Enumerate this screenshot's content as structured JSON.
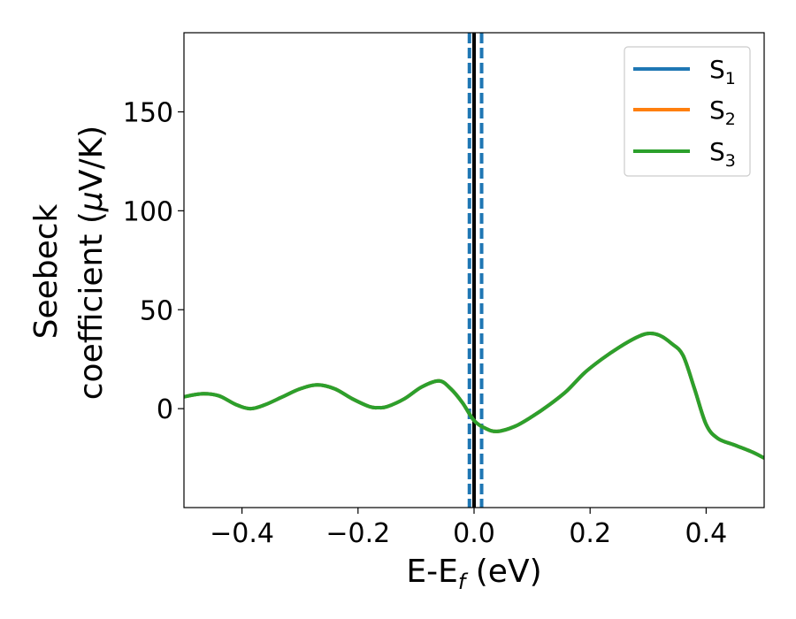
{
  "chart_data": {
    "type": "line",
    "xlabel_main": "E-E",
    "xlabel_sub": "f",
    "xlabel_unit": " (eV)",
    "ylabel_line1": "Seebeck",
    "ylabel_line2_text": "coefficient  (",
    "ylabel_line2_mu": "μ",
    "ylabel_line2_unit": "V/K)",
    "xlim": [
      -0.5,
      0.5
    ],
    "ylim": [
      -50,
      190
    ],
    "xticks": [
      -0.4,
      -0.2,
      0.0,
      0.2,
      0.4
    ],
    "xtick_labels": [
      "−0.4",
      "−0.2",
      "0.0",
      "0.2",
      "0.4"
    ],
    "yticks": [
      0,
      50,
      100,
      150
    ],
    "ytick_labels": [
      "0",
      "50",
      "100",
      "150"
    ],
    "legend_position": "top-right",
    "series": [
      {
        "name": "S",
        "sub": "1",
        "color": "#1f77b4"
      },
      {
        "name": "S",
        "sub": "2",
        "color": "#ff7f0e"
      },
      {
        "name": "S",
        "sub": "3",
        "color": "#2ca02c"
      }
    ],
    "curve": {
      "x": [
        -0.5,
        -0.47,
        -0.44,
        -0.41,
        -0.385,
        -0.36,
        -0.33,
        -0.3,
        -0.27,
        -0.24,
        -0.21,
        -0.18,
        -0.165,
        -0.15,
        -0.12,
        -0.09,
        -0.06,
        -0.04,
        -0.02,
        0.0,
        0.02,
        0.04,
        0.07,
        0.1,
        0.13,
        0.16,
        0.19,
        0.22,
        0.25,
        0.28,
        0.3,
        0.32,
        0.34,
        0.36,
        0.38,
        0.4,
        0.42,
        0.45,
        0.48,
        0.5
      ],
      "y": [
        6,
        7.5,
        6.5,
        2,
        0,
        2,
        6,
        10,
        12,
        10,
        5,
        1,
        0.5,
        1,
        5,
        11,
        14,
        10,
        3,
        -6,
        -10,
        -11.5,
        -9,
        -4,
        2,
        9,
        18,
        25,
        31,
        36,
        38,
        37,
        33,
        27,
        10,
        -8,
        -15,
        -18.5,
        -22,
        -25
      ]
    },
    "vlines": [
      {
        "x": 0.0,
        "style": "solid",
        "color": "#000000"
      },
      {
        "x": -0.008,
        "style": "dashed",
        "color": "#1f77b4"
      },
      {
        "x": 0.013,
        "style": "dashed",
        "color": "#1f77b4"
      }
    ],
    "grid": false
  }
}
